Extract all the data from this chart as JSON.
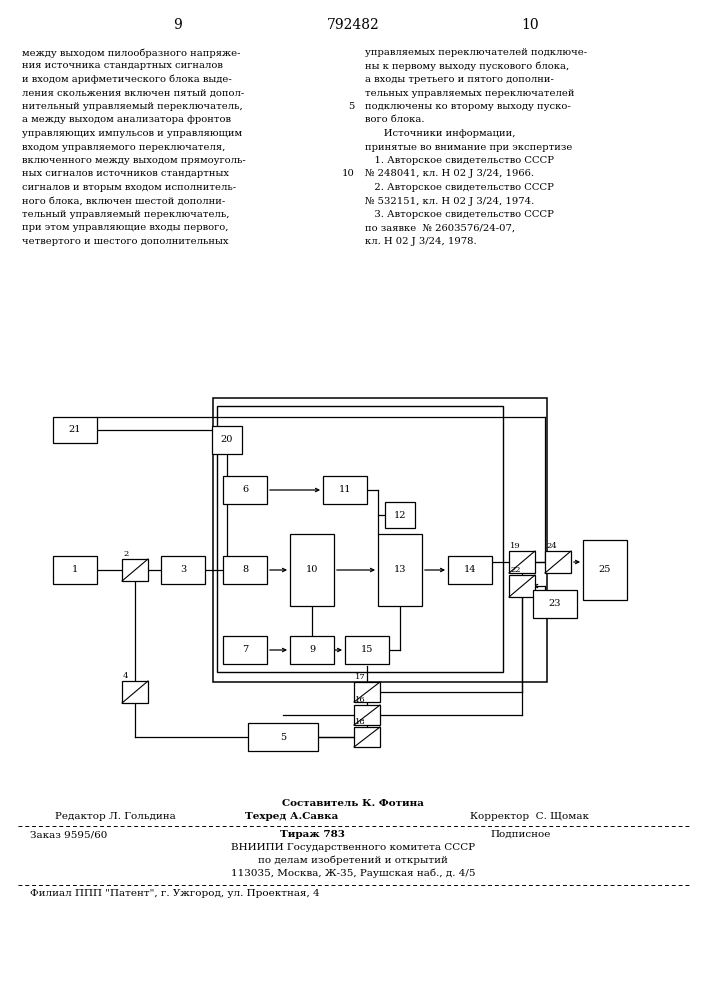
{
  "page_number_left": "9",
  "patent_number": "792482",
  "page_number_right": "10",
  "left_column_text": [
    "между выходом пилообразного напряже-",
    "ния источника стандартных сигналов",
    "и входом арифметического блока выде-",
    "ления скольжения включен пятый допол-",
    "нительный управляемый переключатель,",
    "а между выходом анализатора фронтов",
    "управляющих импульсов и управляющим",
    "входом управляемого переключателя,",
    "включенного между выходом прямоуголь-",
    "ных сигналов источников стандартных",
    "сигналов и вторым входом исполнитель-",
    "ного блока, включен шестой дополни-",
    "тельный управляемый переключатель,",
    "при этом управляющие входы первого,",
    "четвертого и шестого дополнительных"
  ],
  "right_column_text": [
    "управляемых переключателей подключе-",
    "ны к первому выходу пускового блока,",
    "а входы третьего и пятого дополни-",
    "тельных управляемых переключателей",
    "подключены ко второму выходу пуско-",
    "вого блока.",
    "      Источники информации,",
    "принятые во внимание при экспертизе",
    "   1. Авторское свидетельство СССР",
    "№ 248041, кл. Н 02 J 3/24, 1966.",
    "   2. Авторское свидетельство СССР",
    "№ 532151, кл. Н 02 J 3/24, 1974.",
    "   3. Авторское свидетельство СССР",
    "по заявке  № 2603576/24-07,",
    "кл. Н 02 J 3/24, 1978."
  ],
  "line_number_5": "5",
  "line_number_10": "10",
  "footer_composer": "Составитель К. Фотина",
  "footer_editor": "Редактор Л. Гольдина",
  "footer_techred": "Техред А.Савка",
  "footer_corrector": "Корректор  С. Щомак",
  "footer_order": "Заказ 9595/60",
  "footer_tirage": "Тираж 783",
  "footer_podpisnoe": "Подписное",
  "footer_vniipи": "ВНИИПИ Государственного комитета СССР",
  "footer_po_delam": "по делам изобретений и открытий",
  "footer_address": "113035, Москва, Ж-35, Раушская наб., д. 4/5",
  "footer_filial": "Филиал ППП \"Патент\", г. Ужгород, ул. Проектная, 4",
  "bg_color": "#ffffff"
}
